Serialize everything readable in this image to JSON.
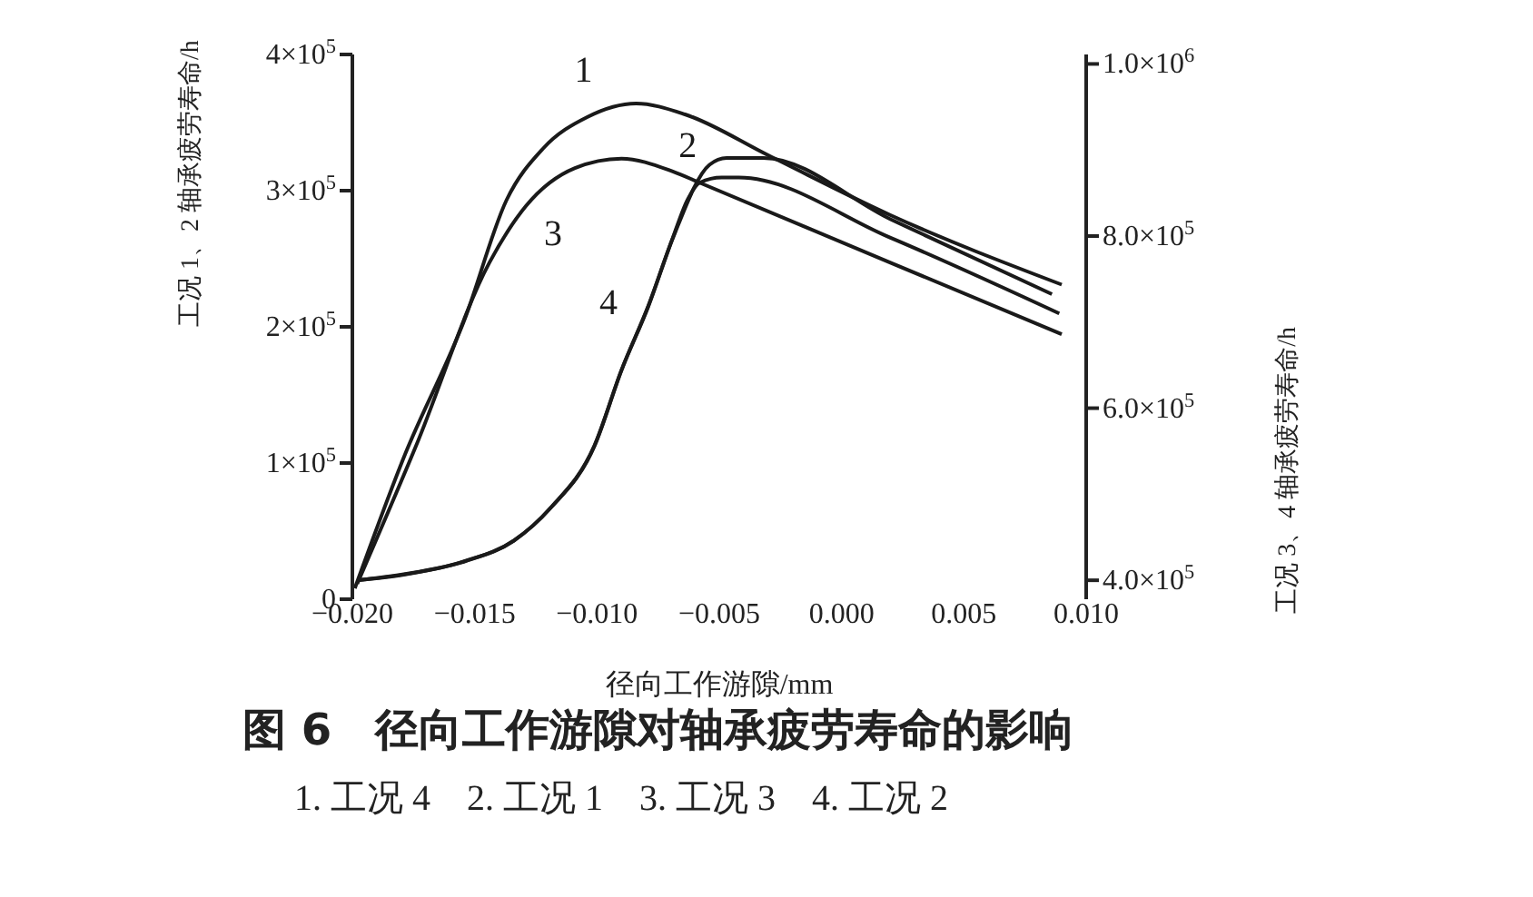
{
  "chart_data": {
    "type": "line",
    "title": "图 6　径向工作游隙对轴承疲劳寿命的影响",
    "xlabel": "径向工作游隙/mm",
    "ylabel": "工况 1、2 轴承疲劳寿命/h",
    "y2label": "工况 3、4 轴承疲劳寿命/h",
    "annotations": [
      "1. 工况 4　2. 工况 1　3. 工况 3　4. 工况 2"
    ],
    "xlim": [
      -0.02,
      0.01
    ],
    "xticks": [
      {
        "value": -0.02,
        "label": "−0.020"
      },
      {
        "value": -0.015,
        "label": "−0.015"
      },
      {
        "value": -0.01,
        "label": "−0.010"
      },
      {
        "value": -0.005,
        "label": "−0.005"
      },
      {
        "value": 0,
        "label": "0.000"
      },
      {
        "value": 0.005,
        "label": "0.005"
      },
      {
        "value": 0.01,
        "label": "0.010"
      }
    ],
    "ylim": [
      0,
      400000
    ],
    "yticks": [
      {
        "value": 0,
        "label": "0"
      },
      {
        "value": 100000,
        "label": "1×10$^{5}$"
      },
      {
        "value": 200000,
        "label": "2×10$^{5}$"
      },
      {
        "value": 300000,
        "label": "3×10$^{5}$"
      },
      {
        "value": 400000,
        "label": "4×10$^{5}$"
      }
    ],
    "y2lim": [
      378000,
      1011000
    ],
    "y2ticks": [
      {
        "value": 400000,
        "label": "4.0×10$^{5}$"
      },
      {
        "value": 600000,
        "label": "6.0×10$^{5}$"
      },
      {
        "value": 800000,
        "label": "8.0×10$^{5}$"
      },
      {
        "value": 1000000,
        "label": "1.0×10$^{6}$"
      }
    ],
    "grid": false,
    "legend": false,
    "marker": "none",
    "line_style": "solid",
    "series": [
      {
        "name": "1",
        "color": "#1a1a1a",
        "x": [
          -0.0199,
          -0.0179,
          -0.0154,
          -0.0137,
          -0.0122,
          -0.0104,
          -0.0084,
          -0.0064,
          -0.003,
          0.002,
          0.009
        ],
        "values": [
          8000,
          104000,
          206000,
          293000,
          331000,
          354000,
          364000,
          356000,
          326000,
          282000,
          231000
        ]
      },
      {
        "name": "2",
        "color": "#1a1a1a",
        "x": [
          -0.0198,
          -0.0179,
          -0.0154,
          -0.0134,
          -0.0119,
          -0.0101,
          -0.009,
          -0.0079,
          -0.0069,
          -0.0054,
          -0.0047,
          -0.0032,
          0.002,
          0.0086
        ],
        "values": [
          14000,
          18000,
          28000,
          43000,
          67000,
          113000,
          168000,
          215000,
          265000,
          319000,
          324000,
          324000,
          279000,
          224000
        ]
      },
      {
        "name": "3",
        "color": "#1a1a1a",
        "axis": "y2",
        "x": [
          -0.0198,
          -0.0174,
          -0.0144,
          -0.0129,
          -0.0109,
          -0.009,
          -0.0069,
          -0.0058,
          0.002,
          0.009
        ],
        "values": [
          396000,
          556000,
          769000,
          835000,
          879000,
          890000,
          875000,
          862000,
          769000,
          686000
        ]
      },
      {
        "name": "4",
        "color": "#1a1a1a",
        "axis": "y2",
        "x": [
          -0.0198,
          -0.0179,
          -0.0154,
          -0.0134,
          -0.0119,
          -0.0101,
          -0.009,
          -0.0079,
          -0.0069,
          -0.0063,
          -0.0058,
          -0.0049,
          -0.0042,
          0.002,
          0.0089
        ],
        "values": [
          400000,
          407000,
          422000,
          446000,
          484000,
          556000,
          644000,
          719000,
          798000,
          842000,
          862000,
          868000,
          868000,
          798000,
          710000
        ]
      }
    ]
  }
}
